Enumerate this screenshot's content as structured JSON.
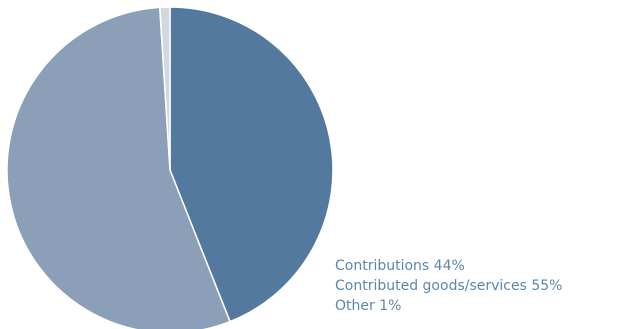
{
  "chart_data": {
    "type": "pie",
    "title": "",
    "slices": [
      {
        "label": "Contributions",
        "value": 44,
        "color": "#537a9e"
      },
      {
        "label": "Contributed goods/services",
        "value": 55,
        "color": "#8b9fb8"
      },
      {
        "label": "Other",
        "value": 1,
        "color": "#d2d8e0"
      }
    ],
    "legend": {
      "placement": "bottom-right",
      "text_color": "#5b87ad",
      "entries": [
        "Contributions 44%",
        "Contributed goods/services 55%",
        "Other 1%"
      ]
    }
  }
}
